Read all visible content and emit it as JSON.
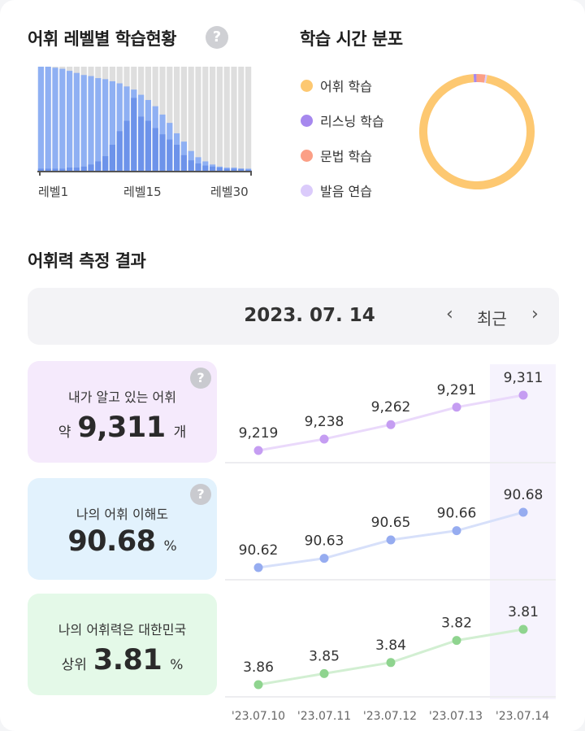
{
  "level_section": {
    "title": "어휘 레벨별 학습현황",
    "help_icon": "?",
    "axis_labels": [
      "레벨1",
      "레벨15",
      "레벨30"
    ],
    "chart_data": {
      "type": "bar",
      "x": [
        1,
        2,
        3,
        4,
        5,
        6,
        7,
        8,
        9,
        10,
        11,
        12,
        13,
        14,
        15,
        16,
        17,
        18,
        19,
        20,
        21,
        22,
        23,
        24,
        25,
        26,
        27,
        28,
        29,
        30
      ],
      "series": [
        {
          "values": [
            100,
            100,
            99,
            98,
            96,
            94,
            92,
            91,
            89,
            88,
            86,
            84,
            81,
            78,
            73,
            68,
            62,
            54,
            46,
            36,
            28,
            19,
            13,
            9,
            6,
            4,
            3,
            3,
            2,
            2
          ]
        },
        {
          "values": [
            2,
            2,
            2,
            2,
            3,
            3,
            4,
            6,
            9,
            14,
            25,
            38,
            48,
            70,
            52,
            48,
            41,
            35,
            30,
            25,
            15,
            10,
            7,
            5,
            4,
            3,
            2,
            2,
            2,
            1
          ]
        }
      ],
      "colors": {
        "learned": "#8fb0f3",
        "current": "#6d93ea",
        "remaining": "#dedede"
      }
    }
  },
  "time_section": {
    "title": "학습 시간 분포",
    "legend": [
      {
        "label": "어휘 학습",
        "color": "#fdc871"
      },
      {
        "label": "리스닝 학습",
        "color": "#a688ee"
      },
      {
        "label": "문법 학습",
        "color": "#fb9f86"
      },
      {
        "label": "발음 연습",
        "color": "#dbcbfb"
      }
    ],
    "chart_data": {
      "type": "pie",
      "categories": [
        "어휘 학습",
        "리스닝 학습",
        "문법 학습",
        "발음 연습"
      ],
      "values": [
        96.2,
        0.8,
        2.5,
        0.5
      ]
    }
  },
  "measure_section": {
    "title": "어휘력 측정 결과",
    "date": "2023. 07. 14",
    "prev_icon": "‹",
    "next_icon": "›",
    "recent_label": "최근",
    "dates": [
      "'23.07.10",
      "'23.07.11",
      "'23.07.12",
      "'23.07.13",
      "'23.07.14"
    ],
    "metrics": [
      {
        "label": "내가 알고 있는 어휘",
        "prefix": "약",
        "value": "9,311",
        "unit": "개",
        "help": "?",
        "bg": "#f5eafc",
        "line_color": "#c59df2",
        "line_light": "#ead9fb",
        "point_labels": [
          "9,219",
          "9,238",
          "9,262",
          "9,291",
          "9,311"
        ],
        "chart_data": {
          "type": "line",
          "x": [
            "'23.07.10",
            "'23.07.11",
            "'23.07.12",
            "'23.07.13",
            "'23.07.14"
          ],
          "values": [
            9219,
            9238,
            9262,
            9291,
            9311
          ]
        }
      },
      {
        "label": "나의 어휘 이해도",
        "prefix": "",
        "value": "90.68",
        "unit": "%",
        "help": "?",
        "bg": "#e2f2fd",
        "line_color": "#96acf0",
        "line_light": "#d7e0fa",
        "point_labels": [
          "90.62",
          "90.63",
          "90.65",
          "90.66",
          "90.68"
        ],
        "chart_data": {
          "type": "line",
          "x": [
            "'23.07.10",
            "'23.07.11",
            "'23.07.12",
            "'23.07.13",
            "'23.07.14"
          ],
          "values": [
            90.62,
            90.63,
            90.65,
            90.66,
            90.68
          ]
        }
      },
      {
        "label": "나의 어휘력은 대한민국",
        "prefix": "상위",
        "value": "3.81",
        "unit": "%",
        "help": "",
        "bg": "#e4f9e8",
        "line_color": "#8fd48f",
        "line_light": "#d2efd2",
        "point_labels": [
          "3.86",
          "3.85",
          "3.84",
          "3.82",
          "3.81"
        ],
        "chart_data": {
          "type": "line",
          "x": [
            "'23.07.10",
            "'23.07.11",
            "'23.07.12",
            "'23.07.13",
            "'23.07.14"
          ],
          "values": [
            3.86,
            3.85,
            3.84,
            3.82,
            3.81
          ]
        }
      }
    ]
  }
}
